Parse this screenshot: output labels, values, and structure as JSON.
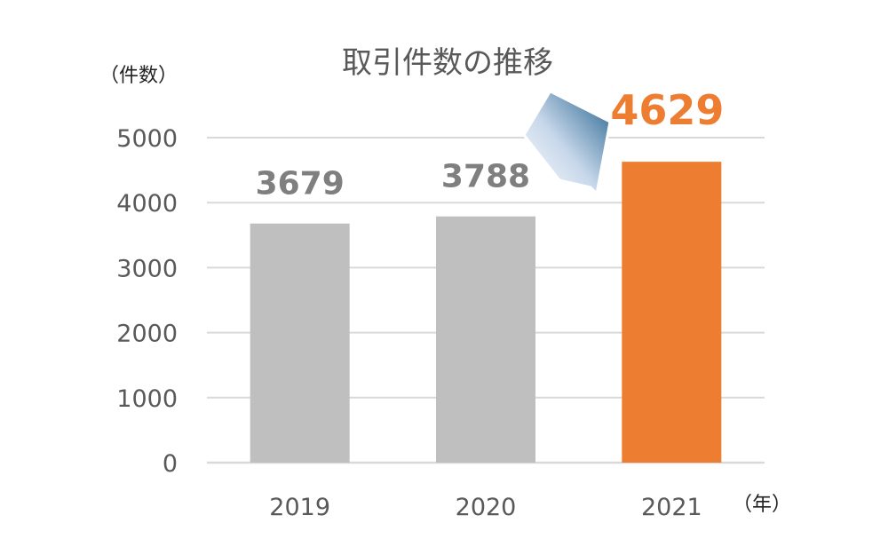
{
  "chart_data": {
    "type": "bar",
    "title": "取引件数の推移",
    "ylabel": "（件数）",
    "xlabel": "（年）",
    "categories": [
      "2019",
      "2020",
      "2021"
    ],
    "values": [
      3679,
      3788,
      4629
    ],
    "data_labels": [
      "3679",
      "3788",
      "4629"
    ],
    "ylim": [
      0,
      5000
    ],
    "yticks": [
      "0",
      "1000",
      "2000",
      "3000",
      "4000",
      "5000"
    ],
    "grid": true,
    "highlight_index": 2,
    "colors": {
      "bar": "#bfbfbf",
      "highlight": "#ed7d31",
      "grid": "#d9d9d9",
      "label": "#7f7f7f",
      "arrow": "#1f5f8b"
    }
  }
}
